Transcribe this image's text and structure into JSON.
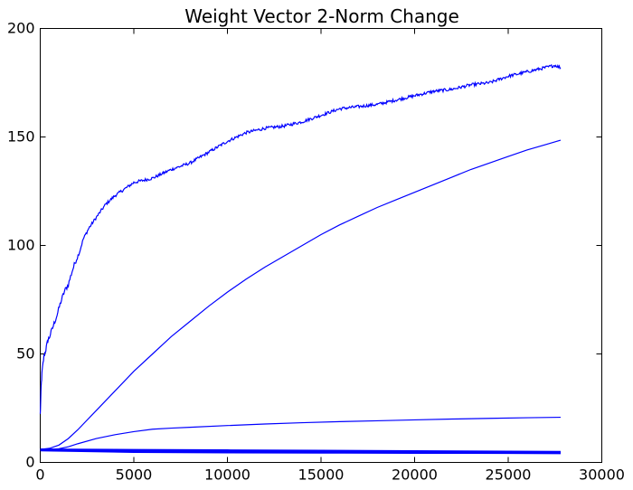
{
  "chart_data": {
    "type": "line",
    "title": "Weight Vector 2-Norm Change",
    "xlabel": "",
    "ylabel": "",
    "xlim": [
      0,
      30000
    ],
    "ylim": [
      0,
      200
    ],
    "xticks": [
      0,
      5000,
      10000,
      15000,
      20000,
      25000,
      30000
    ],
    "yticks": [
      0,
      50,
      100,
      150,
      200
    ],
    "xtick_labels": [
      "0",
      "5000",
      "10000",
      "15000",
      "20000",
      "25000",
      "30000"
    ],
    "ytick_labels": [
      "0",
      "50",
      "100",
      "150",
      "200"
    ],
    "grid": false,
    "line_color": "#0000ff",
    "series": [
      {
        "noisy": true,
        "x": [
          0,
          50,
          100,
          200,
          300,
          400,
          500,
          700,
          900,
          1100,
          1300,
          1500,
          1700,
          1900,
          2100,
          2300,
          2600,
          3000,
          3500,
          4000,
          4500,
          5000,
          5500,
          6000,
          7000,
          8000,
          9000,
          10000,
          11000,
          12000,
          13000,
          14000,
          15000,
          16000,
          17000,
          18000,
          19000,
          20000,
          21000,
          22000,
          23000,
          24000,
          25000,
          26000,
          27000,
          27500,
          27800
        ],
        "y": [
          22,
          35,
          42,
          49,
          52,
          56,
          58,
          63,
          68,
          74,
          79,
          82,
          88,
          93,
          97,
          103,
          108,
          113,
          119,
          123,
          126,
          129,
          130,
          131,
          135,
          138,
          143,
          148,
          152,
          154,
          155,
          157,
          160,
          163,
          164,
          165,
          167,
          169,
          171,
          172,
          174,
          175,
          178,
          180,
          182,
          183,
          182
        ]
      },
      {
        "x": [
          0,
          500,
          1000,
          1500,
          2000,
          3000,
          4000,
          5000,
          6000,
          7000,
          8000,
          9000,
          10000,
          11000,
          12000,
          13000,
          14000,
          15000,
          16000,
          17000,
          18000,
          19000,
          20000,
          21000,
          22000,
          23000,
          24000,
          25000,
          26000,
          27000,
          27800
        ],
        "y": [
          6,
          6.5,
          8,
          11,
          15,
          24,
          33,
          42,
          50,
          58,
          65,
          72,
          78.5,
          84.5,
          90,
          95,
          100,
          105,
          109.5,
          113.5,
          117.5,
          121,
          124.5,
          128,
          131.5,
          135,
          138,
          141,
          144,
          146.5,
          148.5
        ]
      },
      {
        "x": [
          0,
          500,
          1000,
          1500,
          2000,
          3000,
          4000,
          5000,
          6000,
          7000,
          8000,
          10000,
          12000,
          14000,
          16000,
          18000,
          20000,
          22000,
          24000,
          26000,
          27800
        ],
        "y": [
          6,
          5.8,
          6.3,
          7.2,
          8.6,
          11,
          12.8,
          14.2,
          15.3,
          15.8,
          16.2,
          17,
          17.7,
          18.3,
          18.8,
          19.2,
          19.6,
          20,
          20.3,
          20.6,
          20.8
        ]
      },
      {
        "x": [
          0,
          5000,
          10000,
          15000,
          20000,
          25000,
          27800
        ],
        "y": [
          6,
          5.8,
          5.6,
          5.4,
          5.2,
          5.0,
          4.9
        ]
      },
      {
        "x": [
          0,
          5000,
          10000,
          15000,
          20000,
          25000,
          27800
        ],
        "y": [
          6,
          5.5,
          5.2,
          5.0,
          4.8,
          4.6,
          4.5
        ]
      },
      {
        "x": [
          0,
          5000,
          10000,
          15000,
          20000,
          25000,
          27800
        ],
        "y": [
          5.5,
          4.8,
          4.6,
          4.5,
          4.4,
          4.3,
          4.2
        ]
      }
    ]
  }
}
